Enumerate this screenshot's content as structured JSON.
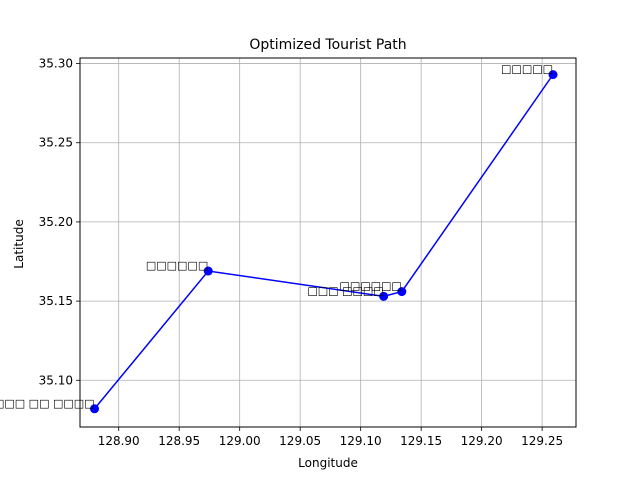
{
  "chart_data": {
    "type": "line",
    "title": "Optimized Tourist Path",
    "xlabel": "Longitude",
    "ylabel": "Latitude",
    "xlim": [
      128.868,
      129.278
    ],
    "ylim": [
      35.0705,
      35.3035
    ],
    "xticks": [
      "128.90",
      "128.95",
      "129.00",
      "129.05",
      "129.10",
      "129.15",
      "129.20",
      "129.25"
    ],
    "yticks": [
      "35.10",
      "35.15",
      "35.20",
      "35.25",
      "35.30"
    ],
    "grid": true,
    "series": [
      {
        "color": "#0000ff",
        "marker": "circle",
        "x": [
          128.88,
          128.974,
          129.119,
          129.134,
          129.259
        ],
        "y": [
          35.082,
          35.169,
          35.153,
          35.156,
          35.293
        ],
        "point_labels": [
          "□□□ □□ □□□□",
          "□□□□□□",
          "□□□ □□□□",
          "□□□□□□",
          "□□□□□"
        ]
      }
    ]
  }
}
